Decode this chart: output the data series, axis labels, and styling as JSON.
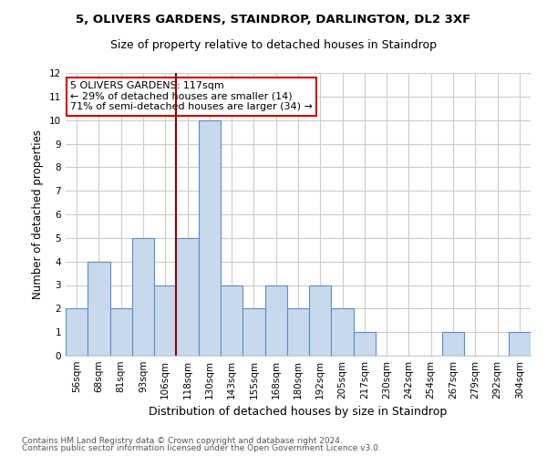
{
  "title1": "5, OLIVERS GARDENS, STAINDROP, DARLINGTON, DL2 3XF",
  "title2": "Size of property relative to detached houses in Staindrop",
  "xlabel": "Distribution of detached houses by size in Staindrop",
  "ylabel": "Number of detached properties",
  "categories": [
    "56sqm",
    "68sqm",
    "81sqm",
    "93sqm",
    "106sqm",
    "118sqm",
    "130sqm",
    "143sqm",
    "155sqm",
    "168sqm",
    "180sqm",
    "192sqm",
    "205sqm",
    "217sqm",
    "230sqm",
    "242sqm",
    "254sqm",
    "267sqm",
    "279sqm",
    "292sqm",
    "304sqm"
  ],
  "values": [
    2,
    4,
    2,
    5,
    3,
    5,
    10,
    3,
    2,
    3,
    2,
    3,
    2,
    1,
    0,
    0,
    0,
    1,
    0,
    0,
    1
  ],
  "bar_color": "#c9d9ec",
  "bar_edge_color": "#5b8cc8",
  "highlight_index": 5,
  "highlight_line_color": "#8b0000",
  "annotation_line1": "5 OLIVERS GARDENS: 117sqm",
  "annotation_line2": "← 29% of detached houses are smaller (14)",
  "annotation_line3": "71% of semi-detached houses are larger (34) →",
  "annotation_box_color": "white",
  "annotation_box_edge_color": "#cc0000",
  "ylim": [
    0,
    12
  ],
  "yticks": [
    0,
    1,
    2,
    3,
    4,
    5,
    6,
    7,
    8,
    9,
    10,
    11,
    12
  ],
  "footer1": "Contains HM Land Registry data © Crown copyright and database right 2024.",
  "footer2": "Contains public sector information licensed under the Open Government Licence v3.0.",
  "bg_color": "white",
  "grid_color": "#cccccc",
  "title1_fontsize": 9.5,
  "title2_fontsize": 9,
  "ylabel_fontsize": 8.5,
  "xlabel_fontsize": 9,
  "tick_fontsize": 7.5,
  "footer_fontsize": 6.5,
  "annotation_fontsize": 8
}
